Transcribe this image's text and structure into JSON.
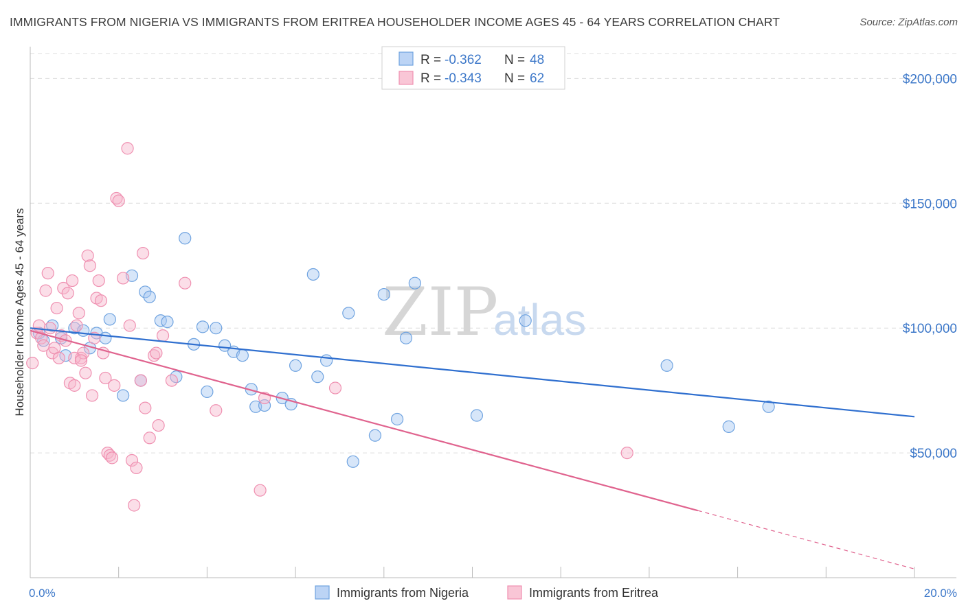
{
  "title": "IMMIGRANTS FROM NIGERIA VS IMMIGRANTS FROM ERITREA HOUSEHOLDER INCOME AGES 45 - 64 YEARS CORRELATION CHART",
  "source": "Source: ZipAtlas.com",
  "watermark": {
    "zip": "ZIP",
    "atlas": "atlas"
  },
  "legend": {
    "nigeria": {
      "r_label": "R =",
      "r_value": "-0.362",
      "n_label": "N =",
      "n_value": "48"
    },
    "eritrea": {
      "r_label": "R =",
      "r_value": "-0.343",
      "n_label": "N =",
      "n_value": "62"
    }
  },
  "chart_data": {
    "type": "scatter",
    "xlabel": "",
    "ylabel": "Householder Income Ages 45 - 64 years",
    "xlim": [
      0,
      20
    ],
    "ylim": [
      0,
      210000
    ],
    "x_tick_labels": {
      "0": "0.0%",
      "20": "20.0%"
    },
    "y_ticks": [
      50000,
      100000,
      150000,
      200000
    ],
    "y_tick_labels": [
      "$50,000",
      "$100,000",
      "$150,000",
      "$200,000"
    ],
    "grid": true,
    "colors": {
      "nigeria": "#6fa3e0",
      "eritrea": "#ef8fb0",
      "nigeria_line": "#2f6fcf",
      "eritrea_line": "#e0638e"
    },
    "series": [
      {
        "name": "Immigrants from Nigeria",
        "key": "nigeria",
        "points": [
          [
            0.2,
            98000
          ],
          [
            0.3,
            95000
          ],
          [
            0.5,
            101000
          ],
          [
            0.7,
            96000
          ],
          [
            0.8,
            89000
          ],
          [
            1.0,
            100000
          ],
          [
            1.2,
            99000
          ],
          [
            1.35,
            92000
          ],
          [
            1.5,
            98000
          ],
          [
            1.7,
            96000
          ],
          [
            1.8,
            103500
          ],
          [
            2.1,
            73000
          ],
          [
            2.3,
            121000
          ],
          [
            2.5,
            79000
          ],
          [
            2.6,
            114500
          ],
          [
            2.7,
            112500
          ],
          [
            2.95,
            103000
          ],
          [
            3.1,
            102500
          ],
          [
            3.3,
            80500
          ],
          [
            3.5,
            136000
          ],
          [
            3.7,
            93500
          ],
          [
            3.9,
            100500
          ],
          [
            4.0,
            74500
          ],
          [
            4.2,
            100000
          ],
          [
            4.4,
            93000
          ],
          [
            4.6,
            90500
          ],
          [
            4.8,
            89000
          ],
          [
            5.0,
            75500
          ],
          [
            5.1,
            68500
          ],
          [
            5.3,
            69000
          ],
          [
            5.7,
            72000
          ],
          [
            5.9,
            69500
          ],
          [
            6.0,
            85000
          ],
          [
            6.4,
            121500
          ],
          [
            6.5,
            80500
          ],
          [
            6.7,
            87000
          ],
          [
            7.2,
            106000
          ],
          [
            7.3,
            46500
          ],
          [
            7.8,
            57000
          ],
          [
            8.0,
            113500
          ],
          [
            8.3,
            63500
          ],
          [
            8.5,
            96000
          ],
          [
            8.7,
            118000
          ],
          [
            10.1,
            65000
          ],
          [
            11.2,
            103000
          ],
          [
            14.4,
            85000
          ],
          [
            15.8,
            60500
          ],
          [
            16.7,
            68500
          ]
        ]
      },
      {
        "name": "Immigrants from Eritrea",
        "key": "eritrea",
        "points": [
          [
            0.05,
            86000
          ],
          [
            0.15,
            98000
          ],
          [
            0.2,
            101000
          ],
          [
            0.25,
            96000
          ],
          [
            0.3,
            93000
          ],
          [
            0.35,
            115000
          ],
          [
            0.4,
            122000
          ],
          [
            0.45,
            100000
          ],
          [
            0.5,
            90000
          ],
          [
            0.55,
            92000
          ],
          [
            0.6,
            108000
          ],
          [
            0.65,
            88000
          ],
          [
            0.7,
            97000
          ],
          [
            0.75,
            116000
          ],
          [
            0.8,
            95000
          ],
          [
            0.85,
            114000
          ],
          [
            0.9,
            78000
          ],
          [
            0.95,
            119000
          ],
          [
            1.0,
            77000
          ],
          [
            1.05,
            101000
          ],
          [
            1.1,
            106000
          ],
          [
            1.15,
            88000
          ],
          [
            1.2,
            90000
          ],
          [
            1.25,
            82000
          ],
          [
            1.3,
            129000
          ],
          [
            1.35,
            125000
          ],
          [
            1.4,
            73000
          ],
          [
            1.45,
            96000
          ],
          [
            1.5,
            112000
          ],
          [
            1.55,
            119000
          ],
          [
            1.6,
            111000
          ],
          [
            1.65,
            90000
          ],
          [
            1.7,
            80000
          ],
          [
            1.75,
            50000
          ],
          [
            1.8,
            49000
          ],
          [
            1.85,
            48000
          ],
          [
            1.9,
            77000
          ],
          [
            1.95,
            152000
          ],
          [
            2.0,
            151000
          ],
          [
            2.1,
            120000
          ],
          [
            2.2,
            172000
          ],
          [
            2.25,
            101000
          ],
          [
            2.3,
            47000
          ],
          [
            2.35,
            29000
          ],
          [
            2.4,
            44000
          ],
          [
            2.5,
            79000
          ],
          [
            2.55,
            130000
          ],
          [
            2.6,
            68000
          ],
          [
            2.7,
            56000
          ],
          [
            2.8,
            89000
          ],
          [
            2.85,
            90000
          ],
          [
            2.9,
            61000
          ],
          [
            3.0,
            97000
          ],
          [
            3.2,
            79000
          ],
          [
            3.5,
            118000
          ],
          [
            4.2,
            67000
          ],
          [
            5.2,
            35000
          ],
          [
            5.3,
            72000
          ],
          [
            6.9,
            76000
          ],
          [
            13.5,
            50000
          ],
          [
            1.0,
            88000
          ],
          [
            1.15,
            87000
          ]
        ]
      }
    ],
    "trendlines": [
      {
        "key": "nigeria",
        "x": [
          0,
          20
        ],
        "y": [
          100000,
          64500
        ],
        "dashed_from": null
      },
      {
        "key": "eritrea",
        "x": [
          0,
          20
        ],
        "y": [
          99000,
          3500
        ],
        "dashed_from": 15.1
      }
    ]
  }
}
